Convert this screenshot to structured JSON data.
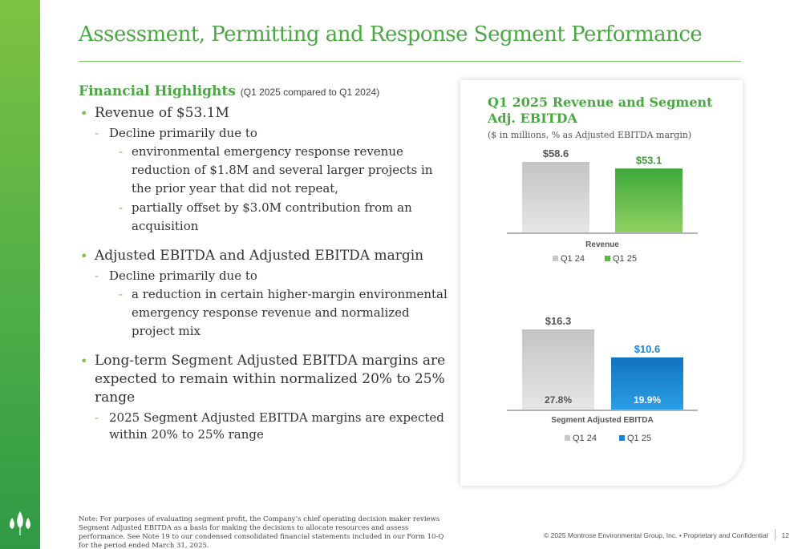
{
  "title": "Assessment, Permitting and Response Segment Performance",
  "highlights": {
    "heading": "Financial Highlights",
    "period": "(Q1 2025 compared to Q1 2024)",
    "b1": "Revenue of $53.1M",
    "b1_s1": "Decline primarily due to",
    "b1_s1_a": "environmental emergency response revenue reduction of $1.8M and several larger projects in the prior year that did not repeat,",
    "b1_s1_b": "partially offset by $3.0M contribution from an acquisition",
    "b2": "Adjusted EBITDA and Adjusted EBITDA margin",
    "b2_s1": "Decline primarily due to",
    "b2_s1_a": "a reduction in certain higher-margin environmental emergency response revenue and normalized project mix",
    "b3": "Long-term Segment Adjusted EBITDA margins are expected to remain within normalized 20% to 25% range",
    "b3_s1": "2025 Segment Adjusted EBITDA margins are expected  within 20% to 25% range"
  },
  "card": {
    "title": "Q1 2025 Revenue and Segment Adj. EBITDA",
    "subtitle": "($ in millions, % as Adjusted EBITDA margin)"
  },
  "chart_data": [
    {
      "type": "bar",
      "categories": [
        "Revenue"
      ],
      "xlabel": "Revenue",
      "series": [
        {
          "name": "Q1 24",
          "values": [
            58.6
          ],
          "label": "$58.6",
          "color": "#c8c8c8"
        },
        {
          "name": "Q1 25",
          "values": [
            53.1
          ],
          "label": "$53.1",
          "color": "#5cb947"
        }
      ],
      "legend": "bottom"
    },
    {
      "type": "bar",
      "categories": [
        "Segment Adjusted EBITDA"
      ],
      "xlabel": "Segment Adjusted EBITDA",
      "series": [
        {
          "name": "Q1 24",
          "values": [
            16.3
          ],
          "label": "$16.3",
          "margin": "27.8%",
          "color": "#c8c8c8"
        },
        {
          "name": "Q1 25",
          "values": [
            10.6
          ],
          "label": "$10.6",
          "margin": "19.9%",
          "color": "#1b86d0"
        }
      ],
      "legend": "bottom"
    }
  ],
  "colors": {
    "brand_green": "#4aa843",
    "revenue_q125": "#5cb947",
    "ebitda_q125": "#1b86d0",
    "q124_gray": "#c8c8c8"
  },
  "note": "Note: For purposes of evaluating segment profit, the Company’s chief operating decision maker reviews Segment Adjusted EBITDA as a basis for making the decisions to allocate resources and assess performance. See Note 19 to our condensed consolidated financial statements included in our Form 10-Q for the period ended March 31, 2025.",
  "footer": {
    "copyright": "© 2025 Montrose Environmental Group, Inc. • Proprietary and Confidential",
    "page": "12"
  },
  "logo": {
    "icon": "montrose-drop-logo-icon"
  }
}
